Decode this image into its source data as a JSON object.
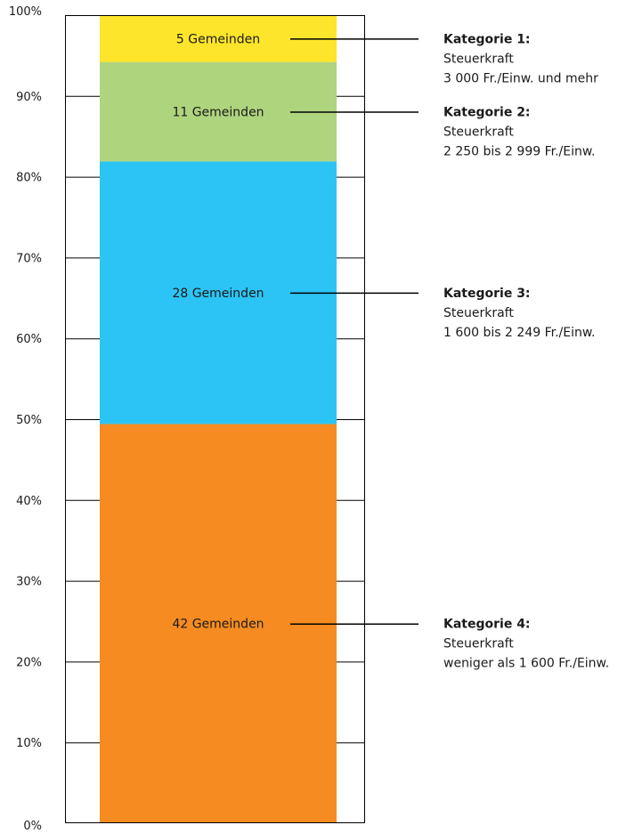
{
  "chart_data": {
    "type": "bar",
    "stacked": true,
    "title": "",
    "xlabel": "",
    "ylabel": "",
    "ylim": [
      0,
      100
    ],
    "y_ticks": [
      "0%",
      "10%",
      "20%",
      "30%",
      "40%",
      "50%",
      "60%",
      "70%",
      "80%",
      "90%",
      "100%"
    ],
    "grid": true,
    "unit": "%",
    "series": [
      {
        "key": "kat4",
        "label": "42 Gemeinden",
        "count": 42,
        "value": 49.4,
        "color": "#f58b21",
        "category_title": "Kategorie 4:",
        "category_line1": "Steuerkraft",
        "category_line2": "weniger als 1 600 Fr./Einw."
      },
      {
        "key": "kat3",
        "label": "28 Gemeinden",
        "count": 28,
        "value": 32.5,
        "color": "#2cc4f4",
        "category_title": "Kategorie 3:",
        "category_line1": "Steuerkraft",
        "category_line2": "1 600 bis 2 249 Fr./Einw."
      },
      {
        "key": "kat2",
        "label": "11 Gemeinden",
        "count": 11,
        "value": 12.3,
        "color": "#afd47e",
        "category_title": "Kategorie 2:",
        "category_line1": "Steuerkraft",
        "category_line2": "2 250 bis 2 999 Fr./Einw."
      },
      {
        "key": "kat1",
        "label": "5 Gemeinden",
        "count": 5,
        "value": 5.8,
        "color": "#fde52b",
        "category_title": "Kategorie 1:",
        "category_line1": "Steuerkraft",
        "category_line2": "3 000 Fr./Einw. und mehr"
      }
    ]
  }
}
